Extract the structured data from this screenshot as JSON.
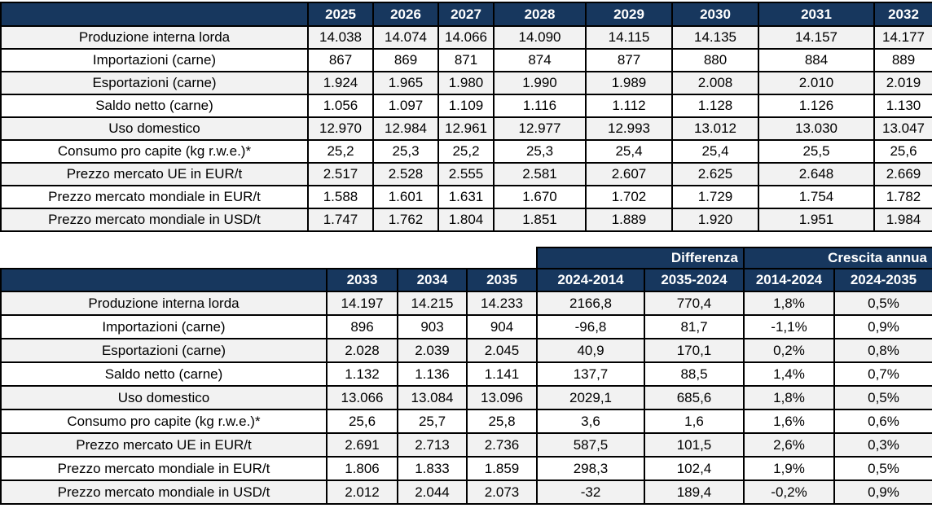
{
  "colors": {
    "header_bg": "#17375E",
    "header_text": "#FFFFFF",
    "row_alt_bg": "#F2F2F2",
    "row_bg": "#FFFFFF",
    "grid_border": "#000000"
  },
  "chart_data": [
    {
      "type": "table",
      "columns": [
        "",
        "2025",
        "2026",
        "2027",
        "2028",
        "2029",
        "2030",
        "2031",
        "2032"
      ],
      "rows": [
        {
          "label": "Produzione interna lorda",
          "values": [
            "14.038",
            "14.074",
            "14.066",
            "14.090",
            "14.115",
            "14.135",
            "14.157",
            "14.177"
          ]
        },
        {
          "label": "Importazioni (carne)",
          "values": [
            "867",
            "869",
            "871",
            "874",
            "877",
            "880",
            "884",
            "889"
          ]
        },
        {
          "label": "Esportazioni (carne)",
          "values": [
            "1.924",
            "1.965",
            "1.980",
            "1.990",
            "1.989",
            "2.008",
            "2.010",
            "2.019"
          ]
        },
        {
          "label": "Saldo netto (carne)",
          "values": [
            "1.056",
            "1.097",
            "1.109",
            "1.116",
            "1.112",
            "1.128",
            "1.126",
            "1.130"
          ]
        },
        {
          "label": "Uso domestico",
          "values": [
            "12.970",
            "12.984",
            "12.961",
            "12.977",
            "12.993",
            "13.012",
            "13.030",
            "13.047"
          ]
        },
        {
          "label": "Consumo pro capite (kg r.w.e.)*",
          "values": [
            "25,2",
            "25,3",
            "25,2",
            "25,3",
            "25,4",
            "25,4",
            "25,5",
            "25,6"
          ]
        },
        {
          "label": "Prezzo mercato UE in EUR/t",
          "values": [
            "2.517",
            "2.528",
            "2.555",
            "2.581",
            "2.607",
            "2.625",
            "2.648",
            "2.669"
          ]
        },
        {
          "label": "Prezzo mercato mondiale in EUR/t",
          "values": [
            "1.588",
            "1.601",
            "1.631",
            "1.670",
            "1.702",
            "1.729",
            "1.754",
            "1.782"
          ]
        },
        {
          "label": "Prezzo mercato mondiale in USD/t",
          "values": [
            "1.747",
            "1.762",
            "1.804",
            "1.851",
            "1.889",
            "1.920",
            "1.951",
            "1.984"
          ]
        }
      ]
    },
    {
      "type": "table",
      "group_headers": [
        {
          "label": "",
          "span": 4
        },
        {
          "label": "Differenza",
          "span": 2
        },
        {
          "label": "Crescita annua",
          "span": 2
        }
      ],
      "columns": [
        "",
        "2033",
        "2034",
        "2035",
        "2024-2014",
        "2035-2024",
        "2014-2024",
        "2024-2035"
      ],
      "rows": [
        {
          "label": "Produzione interna lorda",
          "values": [
            "14.197",
            "14.215",
            "14.233",
            "2166,8",
            "770,4",
            "1,8%",
            "0,5%"
          ]
        },
        {
          "label": "Importazioni (carne)",
          "values": [
            "896",
            "903",
            "904",
            "-96,8",
            "81,7",
            "-1,1%",
            "0,9%"
          ]
        },
        {
          "label": "Esportazioni (carne)",
          "values": [
            "2.028",
            "2.039",
            "2.045",
            "40,9",
            "170,1",
            "0,2%",
            "0,8%"
          ]
        },
        {
          "label": "Saldo netto (carne)",
          "values": [
            "1.132",
            "1.136",
            "1.141",
            "137,7",
            "88,5",
            "1,4%",
            "0,7%"
          ]
        },
        {
          "label": "Uso domestico",
          "values": [
            "13.066",
            "13.084",
            "13.096",
            "2029,1",
            "685,6",
            "1,8%",
            "0,5%"
          ]
        },
        {
          "label": "Consumo pro capite (kg r.w.e.)*",
          "values": [
            "25,6",
            "25,7",
            "25,8",
            "3,6",
            "1,6",
            "1,6%",
            "0,6%"
          ]
        },
        {
          "label": "Prezzo mercato UE in EUR/t",
          "values": [
            "2.691",
            "2.713",
            "2.736",
            "587,5",
            "101,5",
            "2,6%",
            "0,3%"
          ]
        },
        {
          "label": "Prezzo mercato mondiale in EUR/t",
          "values": [
            "1.806",
            "1.833",
            "1.859",
            "298,3",
            "102,4",
            "1,9%",
            "0,5%"
          ]
        },
        {
          "label": "Prezzo mercato mondiale in USD/t",
          "values": [
            "2.012",
            "2.044",
            "2.073",
            "-32",
            "189,4",
            "-0,2%",
            "0,9%"
          ]
        }
      ]
    }
  ]
}
